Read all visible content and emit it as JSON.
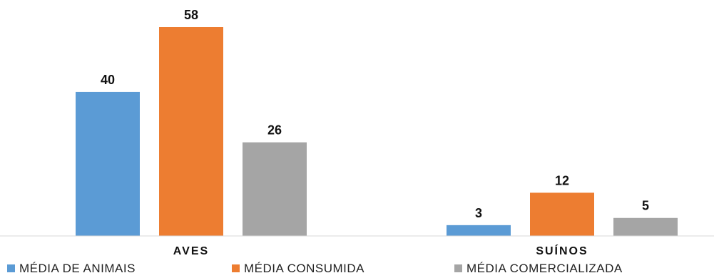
{
  "chart_data": {
    "type": "bar",
    "categories": [
      "AVES",
      "SUÍNOS"
    ],
    "series": [
      {
        "name": "MÉDIA DE ANIMAIS",
        "values": [
          40,
          3
        ],
        "color": "#5b9bd5"
      },
      {
        "name": "MÉDIA CONSUMIDA",
        "values": [
          58,
          12
        ],
        "color": "#ed7d31"
      },
      {
        "name": "MÉDIA COMERCIALIZADA",
        "values": [
          26,
          5
        ],
        "color": "#a5a5a5"
      }
    ],
    "title": "",
    "xlabel": "",
    "ylabel": "",
    "ylim": [
      0,
      58
    ],
    "grid": false,
    "legend_position": "bottom",
    "show_data_labels": true
  }
}
